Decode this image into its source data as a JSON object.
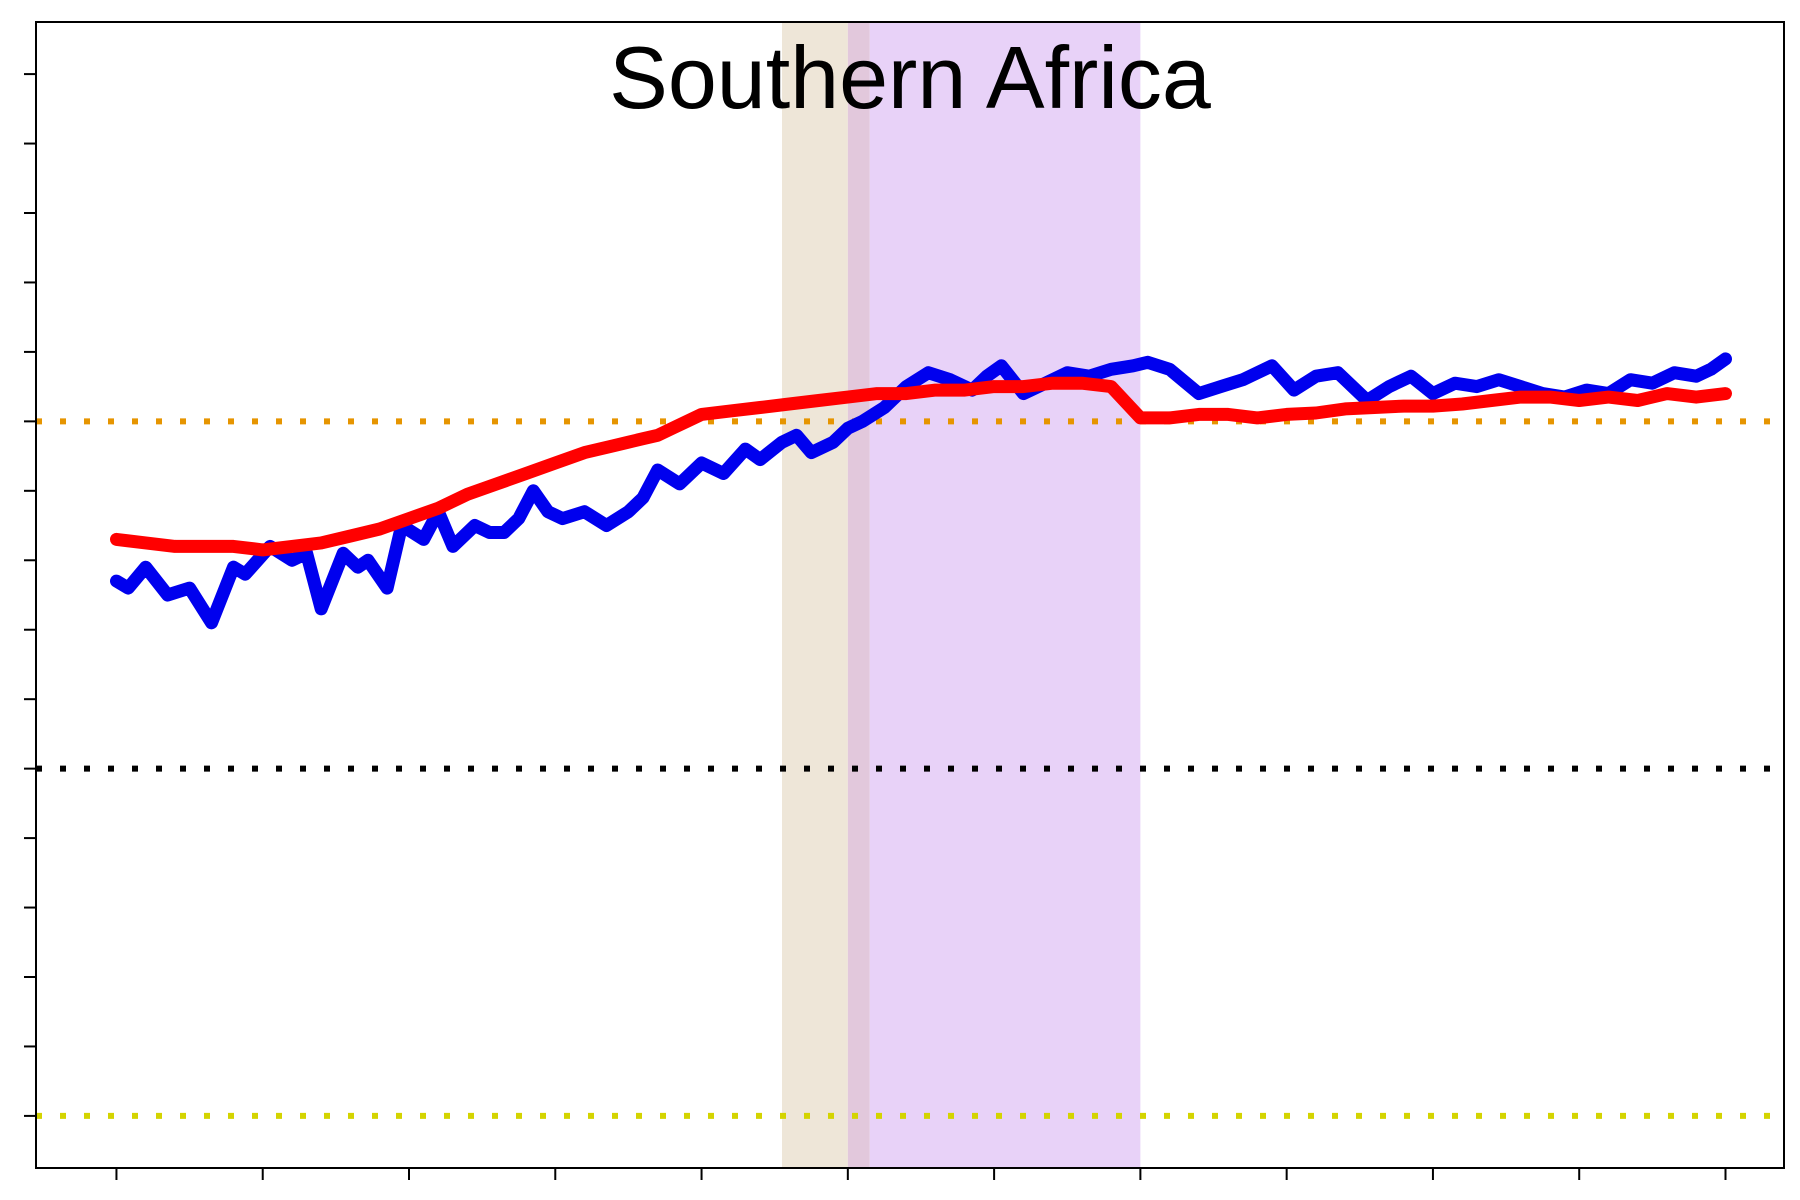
{
  "chart_data": {
    "type": "line",
    "title": "Southern Africa",
    "xlabel": "",
    "ylabel": "",
    "xlim": [
      -0.55,
      11.4
    ],
    "ylim": [
      -5.75,
      10.75
    ],
    "x_ticks": [
      0,
      1,
      2,
      3,
      4,
      5,
      6,
      7,
      8,
      9,
      10,
      11
    ],
    "y_ticks": [
      -5,
      -4,
      -3,
      -2,
      -1,
      0,
      1,
      2,
      3,
      4,
      5,
      6,
      7,
      8,
      9,
      10
    ],
    "grid": false,
    "legend": "none",
    "shaded_regions": [
      {
        "x0": 4.55,
        "x1": 5.0,
        "color": "#eee6d8"
      },
      {
        "x0": 5.0,
        "x1": 5.15,
        "color": "#e2c8dc"
      },
      {
        "x0": 5.15,
        "x1": 7.0,
        "color": "#e8d2f8"
      }
    ],
    "reference_lines": [
      {
        "y": 5,
        "color": "#e69500"
      },
      {
        "y": 0,
        "color": "#000000"
      },
      {
        "y": -5,
        "color": "#d4d400"
      }
    ],
    "series": [
      {
        "color": "#0000ee",
        "x": [
          0,
          0.08,
          0.2,
          0.35,
          0.5,
          0.65,
          0.8,
          0.88,
          1.05,
          1.2,
          1.3,
          1.4,
          1.55,
          1.65,
          1.72,
          1.85,
          1.95,
          2.1,
          2.2,
          2.3,
          2.45,
          2.55,
          2.65,
          2.75,
          2.85,
          2.95,
          3.05,
          3.2,
          3.35,
          3.5,
          3.6,
          3.7,
          3.85,
          4.0,
          4.15,
          4.3,
          4.4,
          4.55,
          4.65,
          4.75,
          4.9,
          5.0,
          5.1,
          5.25,
          5.4,
          5.55,
          5.7,
          5.85,
          5.95,
          6.05,
          6.2,
          6.35,
          6.5,
          6.65,
          6.8,
          6.95,
          7.05,
          7.2,
          7.4,
          7.55,
          7.7,
          7.9,
          8.05,
          8.2,
          8.35,
          8.55,
          8.7,
          8.85,
          9.0,
          9.15,
          9.3,
          9.45,
          9.6,
          9.75,
          9.9,
          10.05,
          10.2,
          10.35,
          10.5,
          10.65,
          10.8,
          10.9,
          11.0
        ],
        "y": [
          2.7,
          2.6,
          2.9,
          2.5,
          2.6,
          2.1,
          2.9,
          2.8,
          3.2,
          3.0,
          3.1,
          2.3,
          3.1,
          2.9,
          3.0,
          2.6,
          3.5,
          3.3,
          3.7,
          3.2,
          3.5,
          3.4,
          3.4,
          3.6,
          4.0,
          3.7,
          3.6,
          3.7,
          3.5,
          3.7,
          3.9,
          4.3,
          4.1,
          4.4,
          4.25,
          4.6,
          4.45,
          4.7,
          4.8,
          4.55,
          4.7,
          4.9,
          5.0,
          5.2,
          5.5,
          5.7,
          5.6,
          5.45,
          5.65,
          5.8,
          5.4,
          5.55,
          5.7,
          5.65,
          5.75,
          5.8,
          5.85,
          5.75,
          5.4,
          5.5,
          5.6,
          5.8,
          5.45,
          5.65,
          5.7,
          5.3,
          5.5,
          5.65,
          5.4,
          5.55,
          5.5,
          5.6,
          5.5,
          5.4,
          5.35,
          5.45,
          5.4,
          5.6,
          5.55,
          5.7,
          5.65,
          5.75,
          5.9
        ]
      },
      {
        "color": "#ff0000",
        "x": [
          0,
          0.2,
          0.4,
          0.6,
          0.8,
          1.0,
          1.2,
          1.4,
          1.6,
          1.8,
          2.0,
          2.2,
          2.4,
          2.6,
          2.8,
          3.0,
          3.2,
          3.4,
          3.5,
          3.6,
          3.7,
          3.8,
          3.9,
          4.0,
          4.2,
          4.4,
          4.6,
          4.8,
          5.0,
          5.2,
          5.4,
          5.6,
          5.8,
          6.0,
          6.2,
          6.4,
          6.6,
          6.8,
          7.0,
          7.2,
          7.4,
          7.6,
          7.8,
          8.0,
          8.2,
          8.4,
          8.6,
          8.8,
          9.0,
          9.2,
          9.4,
          9.6,
          9.8,
          10.0,
          10.2,
          10.4,
          10.6,
          10.8,
          11.0
        ],
        "y": [
          3.3,
          3.25,
          3.2,
          3.2,
          3.2,
          3.15,
          3.2,
          3.25,
          3.35,
          3.45,
          3.6,
          3.75,
          3.95,
          4.1,
          4.25,
          4.4,
          4.55,
          4.65,
          4.7,
          4.75,
          4.8,
          4.9,
          5.0,
          5.1,
          5.15,
          5.2,
          5.25,
          5.3,
          5.35,
          5.4,
          5.4,
          5.45,
          5.45,
          5.5,
          5.5,
          5.55,
          5.55,
          5.5,
          5.05,
          5.05,
          5.1,
          5.1,
          5.05,
          5.1,
          5.12,
          5.18,
          5.2,
          5.22,
          5.22,
          5.25,
          5.3,
          5.35,
          5.35,
          5.3,
          5.35,
          5.3,
          5.4,
          5.35,
          5.4
        ]
      }
    ]
  }
}
